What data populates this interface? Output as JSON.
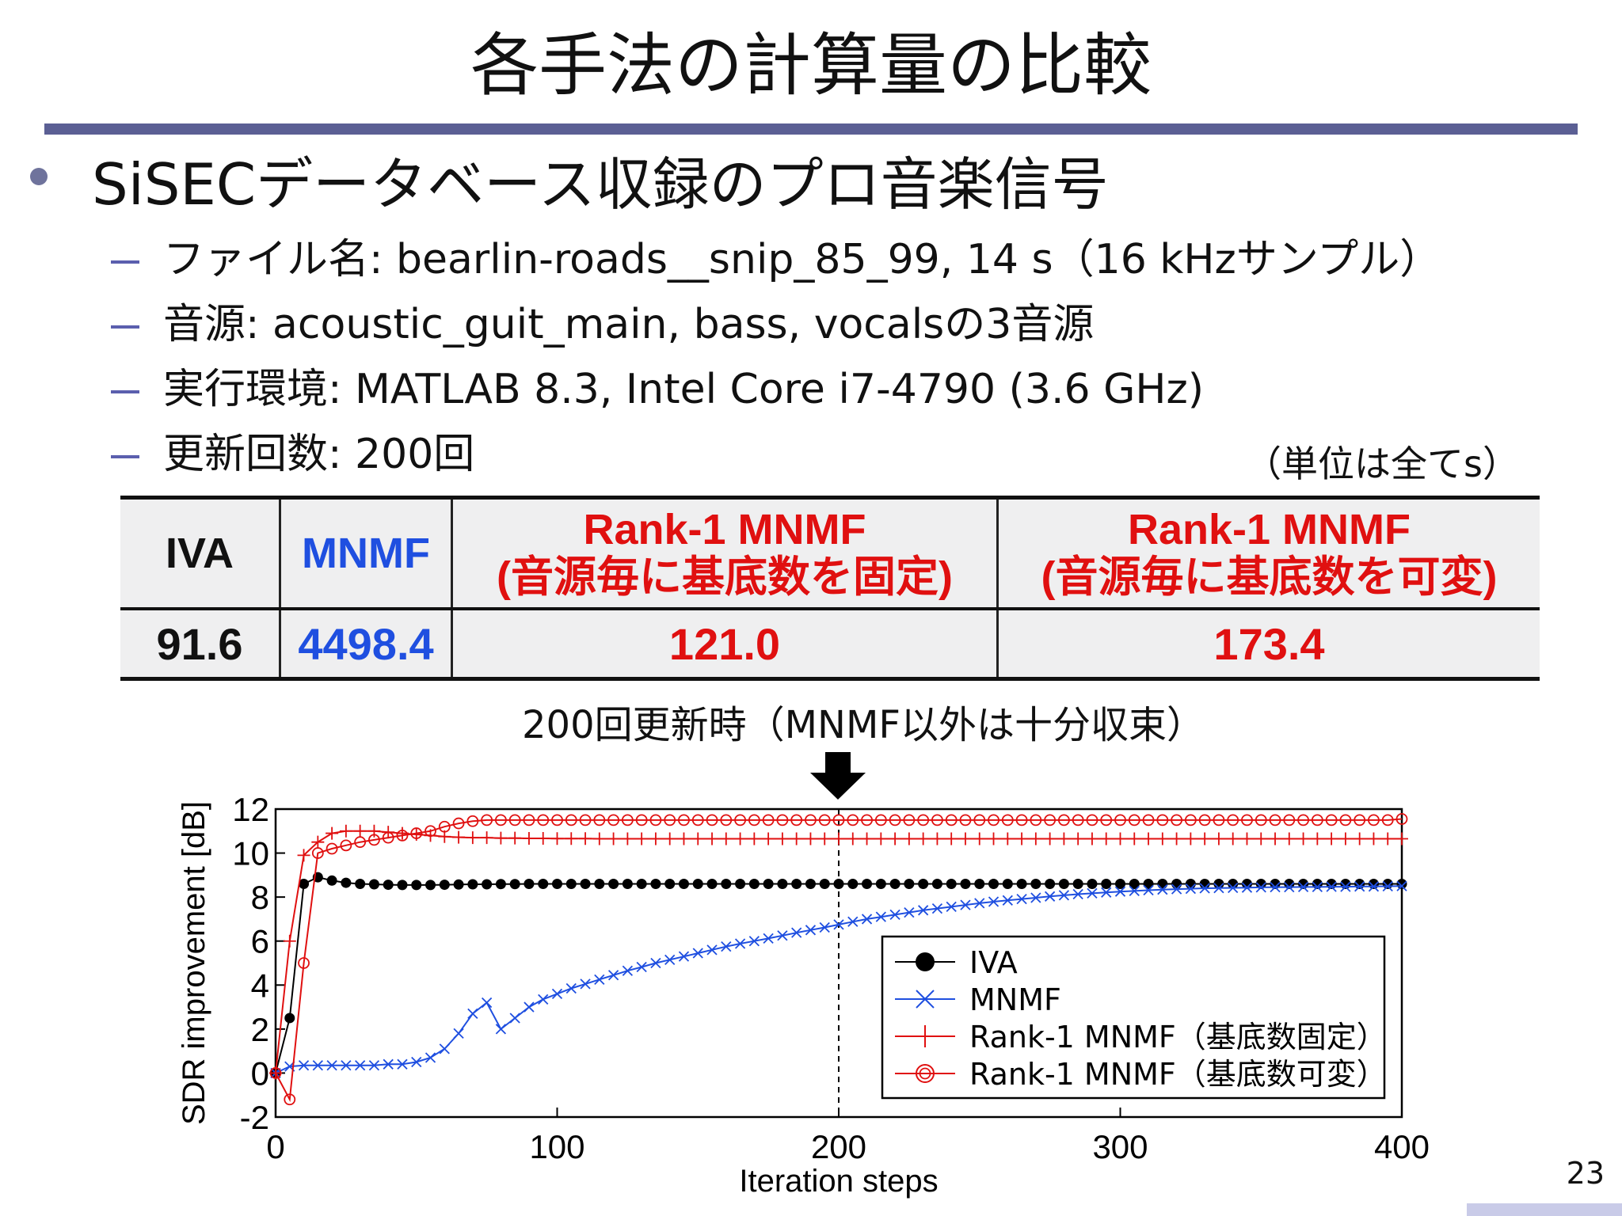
{
  "slide": {
    "title": "各手法の計算量の比較",
    "bullet": "SiSECデータベース収録のプロ音楽信号",
    "subitems": [
      "ファイル名: bearlin-roads__snip_85_99, 14 s（16 kHzサンプル）",
      "音源: acoustic_guit_main, bass, vocalsの3音源",
      "実行環境: MATLAB 8.3, Intel Core i7-4790 (3.6 GHz)",
      "更新回数: 200回"
    ],
    "unit_note": "（単位は全てs）",
    "annotation": "200回更新時（MNMF以外は十分収束）",
    "page_number": "23"
  },
  "table": {
    "headers": {
      "iva": "IVA",
      "mnmf": "MNMF",
      "r1_fixed_line1": "Rank-1 MNMF",
      "r1_fixed_line2": "(音源毎に基底数を固定)",
      "r1_var_line1": "Rank-1 MNMF",
      "r1_var_line2": "(音源毎に基底数を可変)"
    },
    "values": {
      "iva": "91.6",
      "mnmf": "4498.4",
      "r1_fixed": "121.0",
      "r1_var": "173.4"
    },
    "colors": {
      "iva": "#111111",
      "mnmf": "#1f4fe0",
      "rank1": "#e01010"
    }
  },
  "chart_data": {
    "type": "line",
    "xlabel": "Iteration steps",
    "ylabel": "SDR improvement [dB]",
    "xlim": [
      0,
      400
    ],
    "ylim": [
      -2,
      12
    ],
    "xticks": [
      0,
      100,
      200,
      300,
      400
    ],
    "yticks": [
      -2,
      0,
      2,
      4,
      6,
      8,
      10,
      12
    ],
    "marker_line_x": 200,
    "legend_position": "lower-right",
    "x": [
      0,
      5,
      10,
      15,
      20,
      25,
      30,
      35,
      40,
      45,
      50,
      55,
      60,
      65,
      70,
      75,
      80,
      85,
      90,
      95,
      100,
      105,
      110,
      115,
      120,
      125,
      130,
      135,
      140,
      145,
      150,
      155,
      160,
      165,
      170,
      175,
      180,
      185,
      190,
      195,
      200,
      205,
      210,
      215,
      220,
      225,
      230,
      235,
      240,
      245,
      250,
      255,
      260,
      265,
      270,
      275,
      280,
      285,
      290,
      295,
      300,
      305,
      310,
      315,
      320,
      325,
      330,
      335,
      340,
      345,
      350,
      355,
      360,
      365,
      370,
      375,
      380,
      385,
      390,
      395,
      400
    ],
    "series": [
      {
        "name": "IVA",
        "color": "#000000",
        "marker": "filled-circle",
        "values": [
          0,
          2.5,
          8.6,
          8.9,
          8.75,
          8.65,
          8.6,
          8.58,
          8.56,
          8.55,
          8.55,
          8.55,
          8.56,
          8.57,
          8.58,
          8.58,
          8.59,
          8.59,
          8.6,
          8.6,
          8.6,
          8.6,
          8.6,
          8.6,
          8.6,
          8.6,
          8.6,
          8.6,
          8.6,
          8.6,
          8.6,
          8.6,
          8.6,
          8.6,
          8.6,
          8.6,
          8.6,
          8.6,
          8.6,
          8.6,
          8.6,
          8.6,
          8.6,
          8.6,
          8.6,
          8.6,
          8.6,
          8.6,
          8.6,
          8.6,
          8.6,
          8.6,
          8.6,
          8.6,
          8.6,
          8.6,
          8.6,
          8.6,
          8.6,
          8.6,
          8.6,
          8.6,
          8.6,
          8.6,
          8.6,
          8.6,
          8.6,
          8.6,
          8.6,
          8.6,
          8.6,
          8.6,
          8.6,
          8.6,
          8.6,
          8.6,
          8.6,
          8.6,
          8.6,
          8.6,
          8.6
        ]
      },
      {
        "name": "MNMF",
        "color": "#1f4fe0",
        "marker": "x",
        "values": [
          0,
          0.3,
          0.35,
          0.35,
          0.35,
          0.35,
          0.35,
          0.35,
          0.4,
          0.4,
          0.5,
          0.7,
          1.1,
          1.8,
          2.7,
          3.2,
          2.0,
          2.5,
          3.0,
          3.35,
          3.6,
          3.85,
          4.05,
          4.25,
          4.45,
          4.65,
          4.82,
          5.0,
          5.15,
          5.3,
          5.45,
          5.6,
          5.75,
          5.88,
          6.0,
          6.12,
          6.25,
          6.38,
          6.5,
          6.62,
          6.75,
          6.88,
          7.0,
          7.1,
          7.2,
          7.3,
          7.4,
          7.48,
          7.56,
          7.64,
          7.72,
          7.79,
          7.85,
          7.91,
          7.97,
          8.03,
          8.08,
          8.13,
          8.17,
          8.21,
          8.25,
          8.28,
          8.31,
          8.34,
          8.36,
          8.38,
          8.4,
          8.41,
          8.42,
          8.43,
          8.44,
          8.45,
          8.45,
          8.46,
          8.46,
          8.47,
          8.47,
          8.48,
          8.48,
          8.49,
          8.5
        ]
      },
      {
        "name": "Rank-1 MNMF（基底数固定）",
        "color": "#e01010",
        "marker": "plus",
        "values": [
          0,
          6.0,
          9.9,
          10.5,
          10.9,
          11.0,
          11.0,
          11.0,
          10.95,
          10.9,
          10.85,
          10.8,
          10.75,
          10.72,
          10.7,
          10.7,
          10.68,
          10.68,
          10.67,
          10.67,
          10.66,
          10.66,
          10.66,
          10.65,
          10.65,
          10.65,
          10.65,
          10.65,
          10.65,
          10.65,
          10.65,
          10.65,
          10.65,
          10.65,
          10.65,
          10.65,
          10.65,
          10.65,
          10.65,
          10.65,
          10.65,
          10.65,
          10.65,
          10.65,
          10.65,
          10.65,
          10.65,
          10.65,
          10.65,
          10.65,
          10.65,
          10.65,
          10.65,
          10.65,
          10.65,
          10.65,
          10.65,
          10.65,
          10.65,
          10.65,
          10.65,
          10.65,
          10.65,
          10.65,
          10.65,
          10.65,
          10.65,
          10.65,
          10.65,
          10.65,
          10.65,
          10.65,
          10.65,
          10.65,
          10.65,
          10.65,
          10.65,
          10.65,
          10.65,
          10.65,
          10.65
        ]
      },
      {
        "name": "Rank-1 MNMF（基底数可変）",
        "color": "#e01010",
        "marker": "open-circle",
        "values": [
          0,
          -1.2,
          5.0,
          10.0,
          10.2,
          10.35,
          10.5,
          10.6,
          10.7,
          10.8,
          10.9,
          11.0,
          11.2,
          11.35,
          11.45,
          11.5,
          11.5,
          11.5,
          11.5,
          11.5,
          11.5,
          11.5,
          11.5,
          11.5,
          11.5,
          11.5,
          11.5,
          11.5,
          11.5,
          11.5,
          11.5,
          11.5,
          11.5,
          11.5,
          11.5,
          11.5,
          11.5,
          11.5,
          11.5,
          11.5,
          11.5,
          11.5,
          11.5,
          11.5,
          11.5,
          11.5,
          11.5,
          11.5,
          11.5,
          11.5,
          11.5,
          11.5,
          11.5,
          11.5,
          11.5,
          11.5,
          11.5,
          11.5,
          11.5,
          11.5,
          11.5,
          11.5,
          11.5,
          11.5,
          11.5,
          11.5,
          11.5,
          11.5,
          11.5,
          11.5,
          11.5,
          11.5,
          11.5,
          11.5,
          11.5,
          11.5,
          11.5,
          11.5,
          11.5,
          11.5,
          11.55
        ]
      }
    ]
  }
}
